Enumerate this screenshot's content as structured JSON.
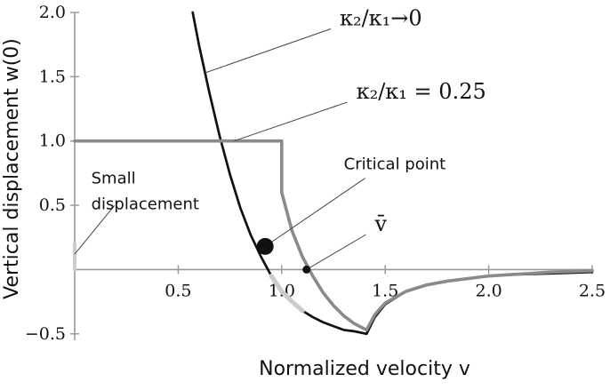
{
  "chart_data": {
    "type": "line",
    "xlabel": "Normalized velocity v",
    "ylabel": "Vertical displacement w(0)",
    "xlim": [
      0,
      2.5
    ],
    "ylim": [
      -0.55,
      2.0
    ],
    "x_ticks": [
      0.5,
      1.0,
      1.5,
      2.0,
      2.5
    ],
    "y_ticks": [
      -0.5,
      0.5,
      1.0,
      1.5,
      2.0
    ],
    "x_tick_labels": [
      "0.5",
      "1.0",
      "1.5",
      "2.0",
      "2.5"
    ],
    "y_tick_labels": [
      "−0.5",
      "0.5",
      "1.0",
      "1.5",
      "2.0"
    ],
    "series": [
      {
        "name": "κ₂/κ₁→0",
        "color": "#111111",
        "x": [
          0.57,
          0.6,
          0.65,
          0.7,
          0.75,
          0.8,
          0.85,
          0.9,
          0.95,
          1.0,
          1.05,
          1.1,
          1.15,
          1.2,
          1.25,
          1.3,
          1.35,
          1.41,
          1.45,
          1.5,
          1.6,
          1.7,
          1.8,
          1.9,
          2.0,
          2.1,
          2.2,
          2.3,
          2.4,
          2.5
        ],
        "y": [
          2.0,
          1.75,
          1.38,
          1.04,
          0.74,
          0.48,
          0.27,
          0.1,
          -0.05,
          -0.17,
          -0.25,
          -0.32,
          -0.37,
          -0.41,
          -0.44,
          -0.47,
          -0.48,
          -0.5,
          -0.37,
          -0.27,
          -0.17,
          -0.12,
          -0.09,
          -0.07,
          -0.05,
          -0.04,
          -0.035,
          -0.03,
          -0.025,
          -0.02
        ]
      },
      {
        "name": "κ₂/κ₁ = 0.25",
        "color": "#8a8a8a",
        "x": [
          0.0,
          1.0,
          1.0,
          1.05,
          1.1,
          1.15,
          1.2,
          1.25,
          1.3,
          1.35,
          1.41,
          1.45,
          1.5,
          1.6,
          1.7,
          1.8,
          1.9,
          2.0,
          2.1,
          2.2,
          2.3,
          2.4,
          2.5
        ],
        "y": [
          1.0,
          1.0,
          0.6,
          0.3,
          0.1,
          -0.05,
          -0.18,
          -0.28,
          -0.36,
          -0.42,
          -0.47,
          -0.35,
          -0.26,
          -0.17,
          -0.12,
          -0.09,
          -0.07,
          -0.05,
          -0.04,
          -0.03,
          -0.02,
          -0.015,
          -0.01
        ]
      }
    ],
    "highlight_segments": [
      {
        "x": [
          0.0,
          0.0
        ],
        "y": [
          0.0,
          0.2
        ],
        "color": "#cccccc"
      },
      {
        "x": [
          0.95,
          1.0,
          1.05,
          1.1
        ],
        "y": [
          -0.05,
          -0.17,
          -0.25,
          -0.32
        ],
        "color": "#cccccc"
      }
    ],
    "points": [
      {
        "x": 0.92,
        "y": 0.18,
        "color": "#111111",
        "size": "large"
      },
      {
        "x": 1.12,
        "y": 0.0,
        "color": "#111111",
        "size": "small"
      }
    ],
    "annotations": [
      {
        "text_math": "κ₂/κ₁→0",
        "text_x": 1.28,
        "text_y": 1.9,
        "point_x": 0.63,
        "point_y": 1.53
      },
      {
        "text_math": "κ₂/κ₁ = 0.25",
        "text_x": 1.36,
        "text_y": 1.33,
        "point_x": 0.77,
        "point_y": 1.0
      },
      {
        "text": "Critical point",
        "text_x": 1.3,
        "text_y": 0.78,
        "point_x": 0.92,
        "point_y": 0.18
      },
      {
        "text_math": "v̄",
        "text_x": 1.45,
        "text_y": 0.3,
        "point_x": 1.12,
        "point_y": 0.0
      },
      {
        "text_lines": [
          "Small",
          "displacement"
        ],
        "text_x": 0.08,
        "text_y": 0.67,
        "point_x": 0.0,
        "point_y": 0.12
      }
    ]
  }
}
